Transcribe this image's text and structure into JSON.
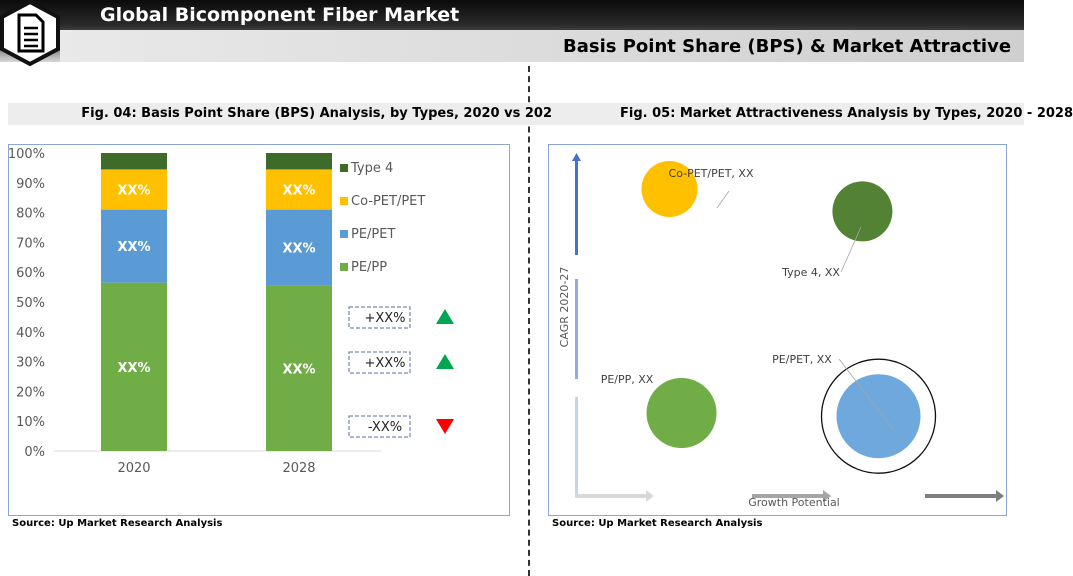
{
  "header": {
    "title": "Global Bicomponent Fiber Market",
    "subtitle": "Basis Point Share (BPS) & Market Attractive",
    "logo_icon": "document-icon"
  },
  "left": {
    "figure_title": "Fig. 04: Basis Point Share (BPS) Analysis, by Types, 2020 vs 202",
    "source": "Source: Up Market Research Analysis",
    "changes": [
      {
        "label": "+XX%",
        "direction": "up",
        "color": "#00a651"
      },
      {
        "label": "+XX%",
        "direction": "up",
        "color": "#00a651"
      },
      {
        "label": "-XX%",
        "direction": "down",
        "color": "#ff0000"
      }
    ]
  },
  "right": {
    "figure_title": "Fig. 05: Market Attractiveness Analysis by Types, 2020 - 2028",
    "source": "Source: Up Market Research Analysis"
  },
  "chart_data": [
    {
      "type": "bar",
      "stacked": true,
      "categories": [
        "2020",
        "2028"
      ],
      "series": [
        {
          "name": "PE/PP",
          "values": [
            56.5,
            55.5
          ],
          "labels": [
            "XX%",
            "XX%"
          ],
          "color": "#70ad47"
        },
        {
          "name": "PE/PET",
          "values": [
            24.5,
            25.5
          ],
          "labels": [
            "XX%",
            "XX%"
          ],
          "color": "#5b9bd5"
        },
        {
          "name": "Co-PET/PET",
          "values": [
            13.5,
            13.5
          ],
          "labels": [
            "XX%",
            "XX%"
          ],
          "color": "#ffc000"
        },
        {
          "name": "Type 4",
          "values": [
            5.5,
            5.5
          ],
          "labels": [
            "",
            ""
          ],
          "color": "#3e6b2a"
        }
      ],
      "y_ticks": [
        "0%",
        "10%",
        "20%",
        "30%",
        "40%",
        "50%",
        "60%",
        "70%",
        "80%",
        "90%",
        "100%"
      ],
      "ylim": [
        0,
        100
      ],
      "legend_position": "right",
      "grid": false
    },
    {
      "type": "scatter",
      "xlabel": "Growth Potential",
      "ylabel": "CAGR 2020-27",
      "points": [
        {
          "name": "Co-PET/PET",
          "label": "Co-PET/PET, XX",
          "x": 2.3,
          "y": 9.0,
          "size": 28,
          "color": "#ffc000"
        },
        {
          "name": "Type 4",
          "label": "Type 4, XX",
          "x": 7.1,
          "y": 8.3,
          "size": 30,
          "color": "#548235"
        },
        {
          "name": "PE/PET",
          "label": "PE/PET, XX",
          "x": 7.5,
          "y": 1.9,
          "size": 42,
          "color": "#6fa8dc"
        },
        {
          "name": "PE/PP",
          "label": "PE/PP, XX",
          "x": 2.6,
          "y": 2.0,
          "size": 35,
          "color": "#70ad47"
        }
      ],
      "xlim": [
        0,
        10
      ],
      "ylim": [
        0,
        10
      ]
    }
  ]
}
